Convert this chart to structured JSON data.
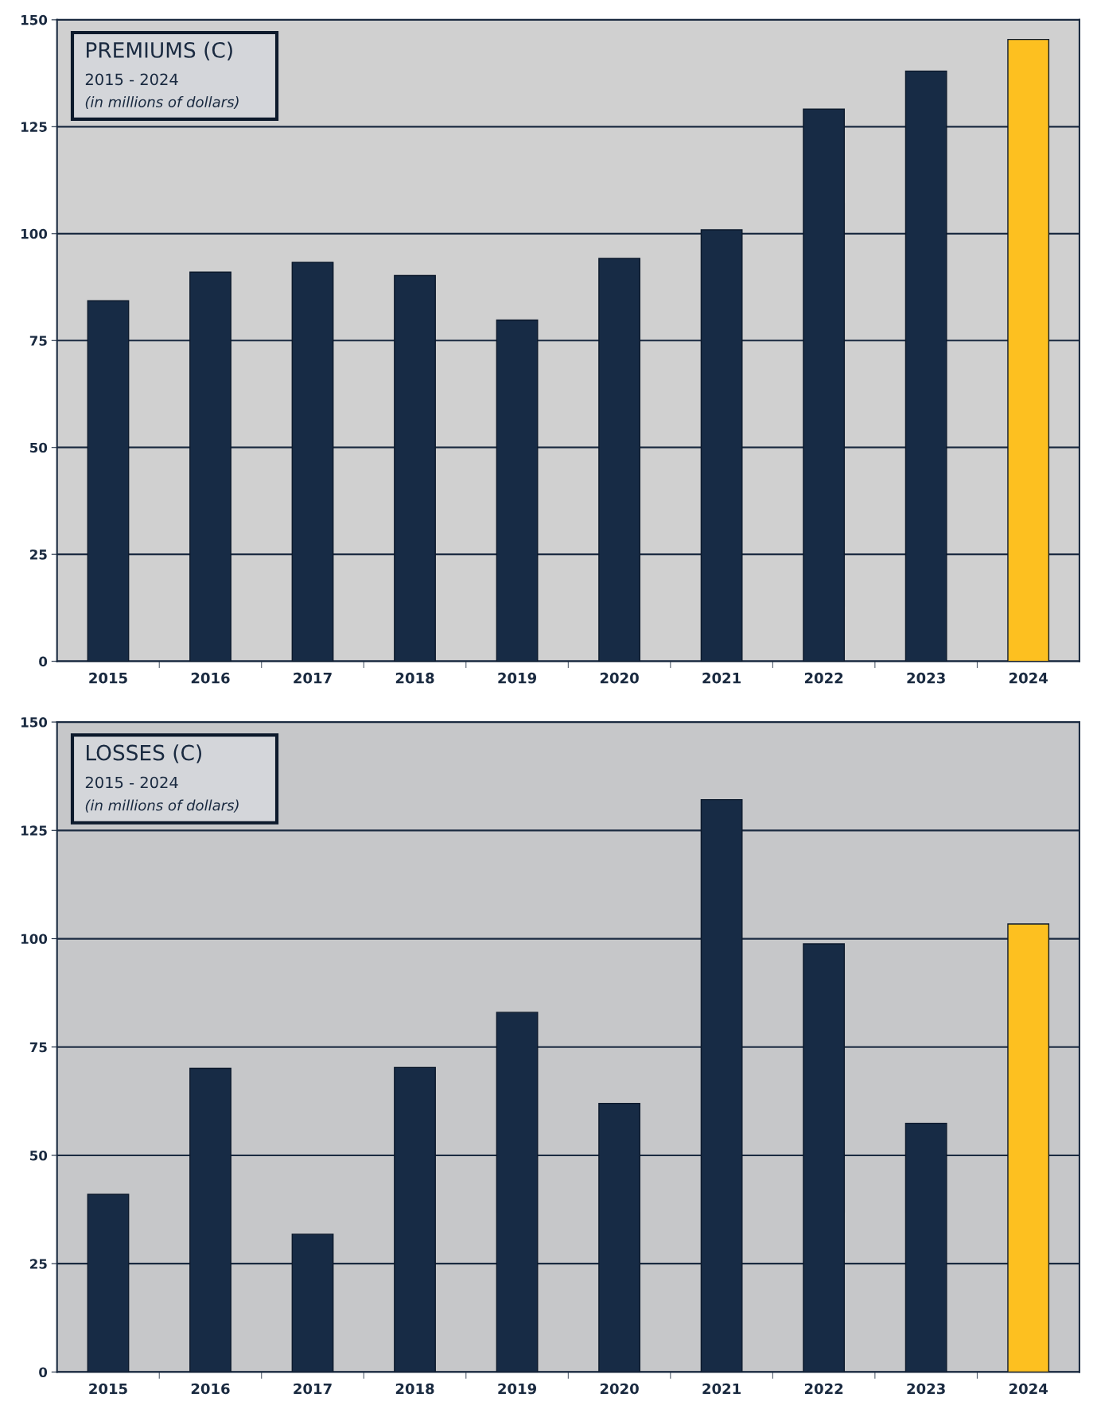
{
  "chart_data": [
    {
      "type": "bar",
      "title": "PREMIUMS (C)",
      "subtitle": "2015 - 2024",
      "annotations": [
        "(in millions of dollars)"
      ],
      "categories": [
        "2015",
        "2016",
        "2017",
        "2018",
        "2019",
        "2020",
        "2021",
        "2022",
        "2023",
        "2024"
      ],
      "values": [
        84.3,
        91.0,
        93.3,
        90.2,
        79.8,
        94.2,
        100.9,
        129.1,
        138.0,
        145.4
      ],
      "colors": [
        "#172b45",
        "#172b45",
        "#172b45",
        "#172b45",
        "#172b45",
        "#172b45",
        "#172b45",
        "#172b45",
        "#172b45",
        "#fdc020"
      ],
      "ylim": [
        0,
        150
      ],
      "yticks": [
        0,
        25,
        50,
        75,
        100,
        125,
        150
      ],
      "grid": "y"
    },
    {
      "type": "bar",
      "title": "LOSSES (C)",
      "subtitle": "2015 - 2024",
      "annotations": [
        "(in millions of dollars)"
      ],
      "categories": [
        "2015",
        "2016",
        "2017",
        "2018",
        "2019",
        "2020",
        "2021",
        "2022",
        "2023",
        "2024"
      ],
      "values": [
        41.0,
        70.1,
        31.8,
        70.3,
        83.0,
        62.0,
        132.1,
        98.8,
        57.4,
        103.4
      ],
      "colors": [
        "#172b45",
        "#172b45",
        "#172b45",
        "#172b45",
        "#172b45",
        "#172b45",
        "#172b45",
        "#172b45",
        "#172b45",
        "#fdc020"
      ],
      "ylim": [
        0,
        150
      ],
      "yticks": [
        0,
        25,
        50,
        75,
        100,
        125,
        150
      ],
      "grid": "y"
    }
  ]
}
